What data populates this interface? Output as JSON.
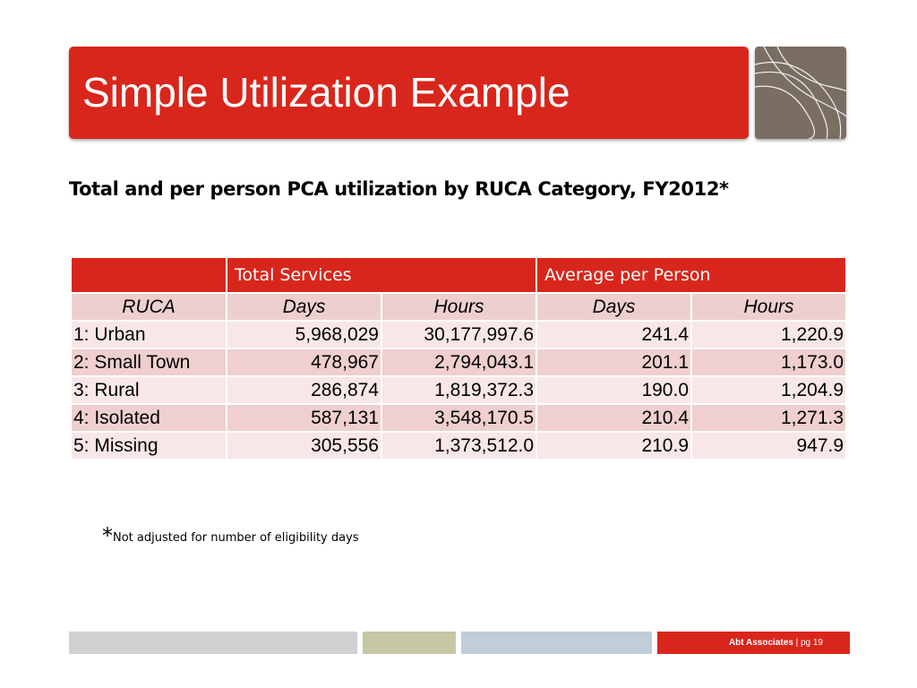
{
  "slide": {
    "title": "Simple Utilization Example",
    "subtitle": "Total and per person PCA utilization by RUCA Category, FY2012*"
  },
  "table": {
    "group_headers": [
      "",
      "Total Services",
      "Average per Person"
    ],
    "columns": [
      "RUCA",
      "Days",
      "Hours",
      "Days",
      "Hours"
    ],
    "rows": [
      [
        "1: Urban",
        "5,968,029",
        "30,177,997.6",
        "241.4",
        "1,220.9"
      ],
      [
        "2: Small Town",
        "478,967",
        "2,794,043.1",
        "201.1",
        "1,173.0"
      ],
      [
        "3: Rural",
        "286,874",
        "1,819,372.3",
        "190.0",
        "1,204.9"
      ],
      [
        "4: Isolated",
        "587,131",
        "3,548,170.5",
        "210.4",
        "1,271.3"
      ],
      [
        "5: Missing",
        "305,556",
        "1,373,512.0",
        "210.9",
        "947.9"
      ]
    ]
  },
  "footnote": {
    "star": "*",
    "text": "Not adjusted for number of eligibility days"
  },
  "footer": {
    "org": "Abt Associates",
    "separator": " | ",
    "page": "pg 19"
  },
  "colors": {
    "accent_red": "#d9261c",
    "logo_taupe": "#7a6e63",
    "row_light": "#f8e7e7",
    "row_dark": "#efcfcf"
  },
  "icons": {
    "logo": "abstract-lines-logo-icon"
  }
}
